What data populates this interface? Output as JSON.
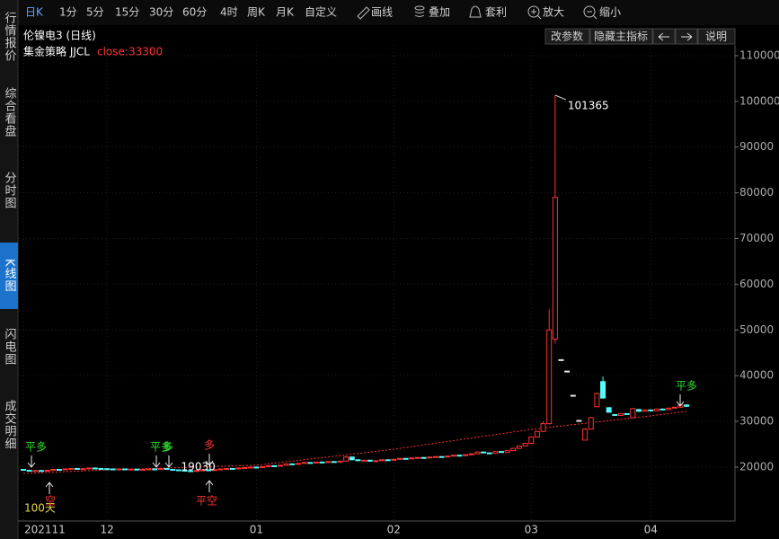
{
  "toolbar": [
    "日K",
    "1分",
    "5分",
    "15分",
    "30分",
    "60分",
    "4时",
    "周K",
    "月K",
    "自定义",
    "画线",
    "叠加",
    "套利",
    "放大",
    "缩小"
  ],
  "sidebar": [
    "行情报价",
    "综合看盘",
    "分时图",
    "K线图",
    "闪电图",
    "成交明细"
  ],
  "header": {
    "title": "伦镍电3 (日线)",
    "buttons": [
      "改参数",
      "隐藏主指标",
      "说明"
    ]
  },
  "chart_data": {
    "type": "candlestick",
    "indicator_name": "集金策略 JJCL",
    "indicator_value": "close:33300",
    "up_color": "#ff3232",
    "down_color": "#54fcfc",
    "flat_color": "#e8e8e8",
    "categories": [
      "202111",
      null,
      null,
      null,
      null,
      null,
      null,
      null,
      null,
      null,
      null,
      null,
      null,
      null,
      "12",
      null,
      null,
      null,
      null,
      null,
      null,
      null,
      null,
      null,
      null,
      null,
      null,
      null,
      null,
      null,
      null,
      null,
      null,
      null,
      null,
      null,
      null,
      null,
      null,
      "01",
      null,
      null,
      null,
      null,
      null,
      null,
      null,
      null,
      null,
      null,
      null,
      null,
      null,
      null,
      null,
      null,
      null,
      null,
      null,
      null,
      null,
      null,
      "02",
      null,
      null,
      null,
      null,
      null,
      null,
      null,
      null,
      null,
      null,
      null,
      null,
      null,
      null,
      null,
      null,
      null,
      null,
      null,
      null,
      null,
      null,
      "03",
      null,
      null,
      null,
      null,
      null,
      null,
      null,
      null,
      null,
      null,
      null,
      null,
      null,
      null,
      null,
      null,
      null,
      null,
      null,
      "04",
      null,
      null,
      null,
      null,
      null,
      null
    ],
    "open": [
      19500,
      19300,
      19200,
      19250,
      19150,
      19300,
      19500,
      19450,
      19600,
      19700,
      19550,
      19650,
      19800,
      19700,
      19650,
      19600,
      19550,
      19600,
      19500,
      19550,
      19450,
      19500,
      19600,
      19550,
      19700,
      19500,
      19400,
      19300,
      19200,
      19150,
      19250,
      19400,
      19300,
      19450,
      19600,
      19700,
      19650,
      19800,
      19900,
      20000,
      19950,
      20100,
      20300,
      20250,
      20400,
      20700,
      20600,
      20800,
      21000,
      20900,
      21100,
      21000,
      21200,
      21100,
      21300,
      22200,
      21600,
      21400,
      21500,
      21300,
      21400,
      21600,
      21500,
      21700,
      21900,
      21800,
      22000,
      22100,
      22000,
      22200,
      22300,
      22200,
      22400,
      22600,
      22500,
      22700,
      22900,
      23300,
      23100,
      23000,
      23400,
      23200,
      23600,
      24100,
      24600,
      25200,
      26600,
      27800,
      29500,
      48000,
      43500,
      41000,
      35700,
      30200,
      25900,
      28300,
      33200,
      38700,
      33000,
      31500,
      31300,
      31700,
      30800,
      32600,
      32200,
      32500,
      32300,
      32700,
      32600,
      32900,
      33100,
      33600
    ],
    "high": [
      19600,
      19400,
      19350,
      19350,
      19400,
      19600,
      19600,
      19700,
      19800,
      19800,
      19750,
      19900,
      19900,
      19800,
      19750,
      19700,
      19700,
      19700,
      19650,
      19650,
      19600,
      19700,
      19700,
      19800,
      19800,
      19600,
      19500,
      19400,
      19300,
      19350,
      19500,
      19500,
      19550,
      19700,
      19800,
      19800,
      19900,
      20000,
      20100,
      20100,
      20200,
      20400,
      20400,
      20500,
      20800,
      20800,
      20900,
      21100,
      21100,
      21200,
      21200,
      21300,
      21300,
      21400,
      22500,
      22300,
      21700,
      21600,
      21600,
      21500,
      21700,
      21700,
      21800,
      22000,
      22000,
      22100,
      22200,
      22200,
      22300,
      22400,
      22400,
      22500,
      22700,
      22700,
      22800,
      23000,
      23400,
      23400,
      23200,
      23500,
      23500,
      23700,
      24200,
      24700,
      25300,
      26700,
      27900,
      30000,
      54500,
      101365,
      43500,
      41000,
      35700,
      30200,
      28500,
      31000,
      36300,
      39800,
      33100,
      31600,
      31800,
      31800,
      32900,
      32700,
      32600,
      32600,
      32800,
      32800,
      33000,
      33200,
      33700,
      33700
    ],
    "low": [
      19200,
      19100,
      19100,
      19050,
      19050,
      19200,
      19350,
      19350,
      19500,
      19450,
      19450,
      19550,
      19600,
      19550,
      19500,
      19450,
      19450,
      19400,
      19400,
      19350,
      19350,
      19400,
      19450,
      19450,
      19400,
      19300,
      19200,
      19030,
      19050,
      19050,
      19150,
      19200,
      19200,
      19350,
      19500,
      19550,
      19550,
      19700,
      19800,
      19850,
      19850,
      20000,
      20150,
      20150,
      20300,
      20500,
      20500,
      20700,
      20800,
      20800,
      20900,
      20900,
      21000,
      21000,
      21200,
      21500,
      21300,
      21300,
      21200,
      21200,
      21300,
      21400,
      21400,
      21600,
      21700,
      21700,
      21900,
      21900,
      21900,
      22100,
      22100,
      22100,
      22300,
      22400,
      22400,
      22600,
      22800,
      23000,
      22900,
      22900,
      23100,
      23100,
      23500,
      24000,
      24500,
      25100,
      26500,
      27700,
      29300,
      47000,
      43500,
      41000,
      35700,
      30200,
      25900,
      28200,
      33100,
      35000,
      31900,
      31200,
      31200,
      31500,
      30700,
      32100,
      32100,
      32200,
      32200,
      32500,
      32500,
      32800,
      33000,
      33200
    ],
    "close": [
      19300,
      19200,
      19250,
      19150,
      19300,
      19500,
      19450,
      19600,
      19700,
      19550,
      19650,
      19800,
      19700,
      19650,
      19600,
      19550,
      19600,
      19500,
      19550,
      19450,
      19500,
      19600,
      19550,
      19700,
      19500,
      19400,
      19300,
      19200,
      19150,
      19250,
      19400,
      19300,
      19450,
      19600,
      19700,
      19650,
      19800,
      19900,
      20000,
      19950,
      20100,
      20300,
      20250,
      20400,
      20700,
      20600,
      20800,
      21000,
      20900,
      21100,
      21000,
      21200,
      21100,
      21300,
      22200,
      21600,
      21400,
      21500,
      21300,
      21400,
      21600,
      21500,
      21700,
      21900,
      21800,
      22000,
      22100,
      22000,
      22200,
      22300,
      22200,
      22400,
      22600,
      22500,
      22700,
      22900,
      23300,
      23100,
      23000,
      23400,
      23200,
      23600,
      24100,
      24600,
      25200,
      26600,
      27800,
      29500,
      50000,
      79000,
      43500,
      41000,
      35700,
      30200,
      28300,
      30800,
      36100,
      35100,
      32000,
      31300,
      31700,
      31600,
      32800,
      32200,
      32500,
      32300,
      32700,
      32600,
      32900,
      33100,
      33600,
      33300
    ],
    "ma": {
      "name": "100天",
      "color": "#ff3232",
      "label_color": "#e8d84a",
      "x": [
        0,
        14,
        39,
        62,
        85,
        105,
        111
      ],
      "values": [
        18600,
        19400,
        20400,
        23900,
        28250,
        31200,
        32200
      ]
    },
    "signals": [
      {
        "text": "平多",
        "color": "#2ee02e"
      },
      {
        "text": "空",
        "color": "#ff3232"
      },
      {
        "text": "平多",
        "color": "#2ee02e"
      },
      {
        "text": "多",
        "color": "#2ee02e"
      },
      {
        "text": "多",
        "color": "#ff3232"
      },
      {
        "text": "平空",
        "color": "#ff3232"
      },
      {
        "text": "平多",
        "color": "#2ee02e"
      }
    ],
    "ylim": [
      8200,
      112350
    ],
    "yticks": [
      20000,
      30000,
      40000,
      50000,
      60000,
      70000,
      80000,
      90000,
      100000,
      110000
    ],
    "grid": true
  }
}
